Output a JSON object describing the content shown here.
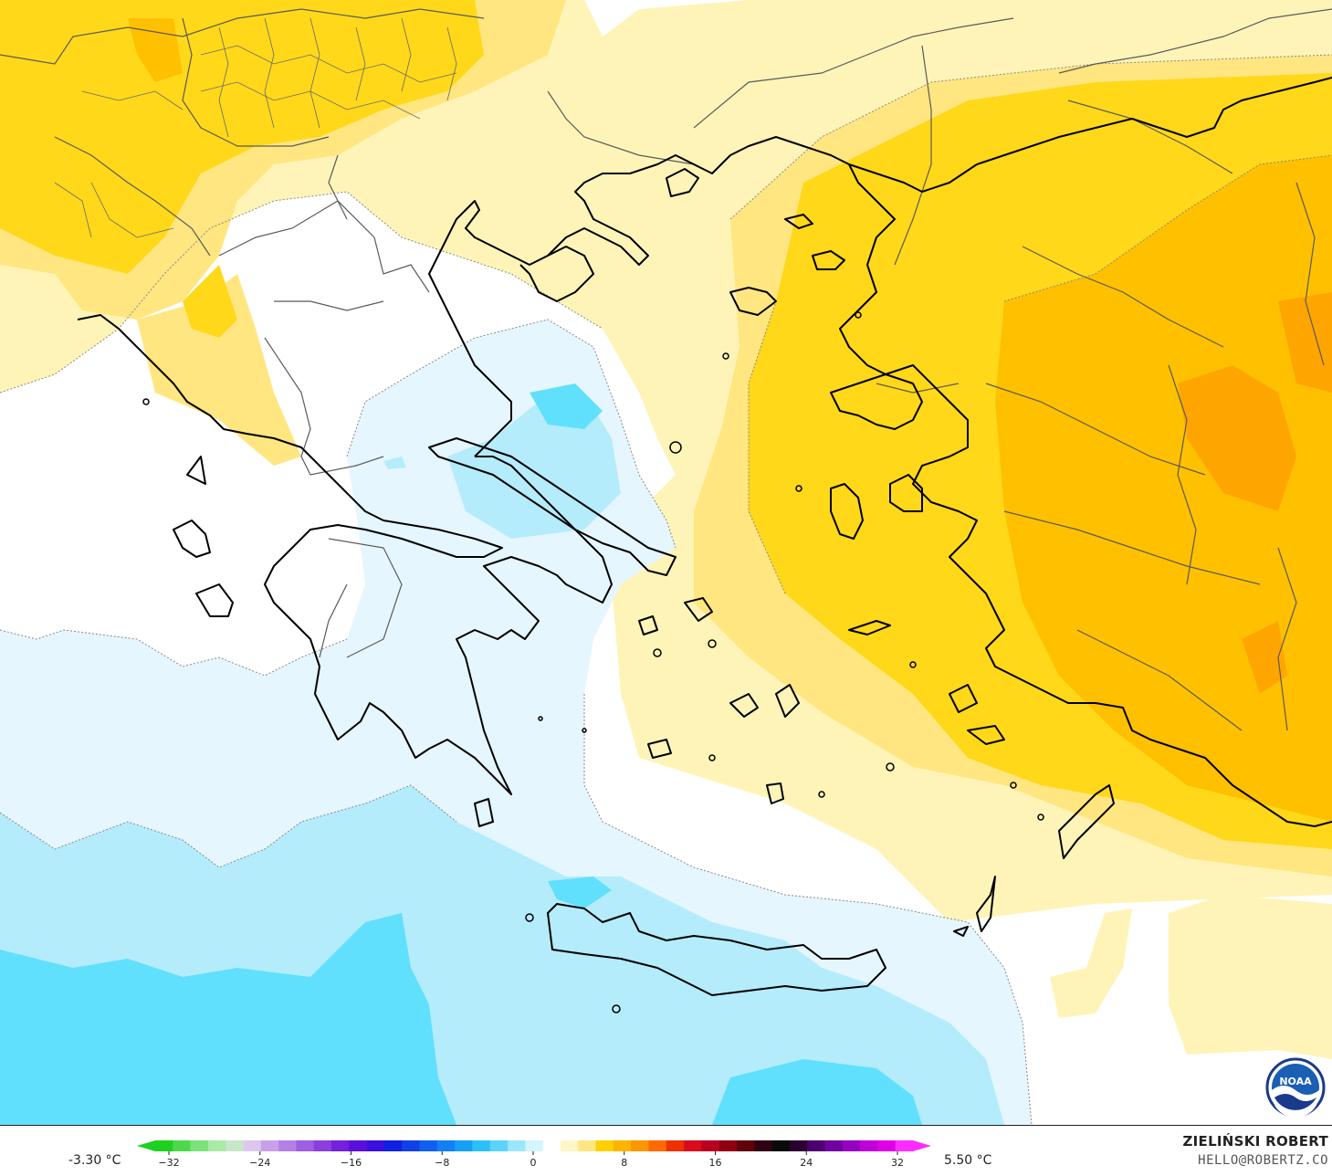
{
  "legend": {
    "min_label": "-3.30 °C",
    "max_label": "5.50 °C",
    "ticks": [
      "−32",
      "−24",
      "−16",
      "−8",
      "0",
      "8",
      "16",
      "24",
      "32"
    ],
    "colors": [
      "#1fd11f",
      "#4cda4c",
      "#7be27b",
      "#a8eaa8",
      "#c8e6c8",
      "#dcc8ee",
      "#c8a0ea",
      "#b480e6",
      "#9e5fe2",
      "#8a3ede",
      "#7520da",
      "#5a10dc",
      "#3a10e0",
      "#1020e0",
      "#1040e8",
      "#1060f0",
      "#1080f4",
      "#14a0f6",
      "#2cc0f8",
      "#5ad4fa",
      "#9ae6fc",
      "#d4f4fe",
      "#ffffff",
      "#fff6c8",
      "#ffe680",
      "#ffd000",
      "#ffb400",
      "#ff9600",
      "#ff6a00",
      "#f03000",
      "#d80c1a",
      "#b80020",
      "#900010",
      "#600008",
      "#300014",
      "#0a0a0a",
      "#2a0030",
      "#4c0070",
      "#7000a0",
      "#9600c0",
      "#c000d8",
      "#e000e8",
      "#ff2cff"
    ]
  },
  "branding": {
    "author": "ZIELIŃSKI ROBERT",
    "email": "HELLO@ROBERTZ.CO",
    "logo_text": "NOAA"
  },
  "map_colors": {
    "background_white": "#ffffff",
    "pale_yellow": "#fff4b8",
    "light_yellow": "#ffe680",
    "yellow": "#ffd81a",
    "orange_yellow": "#ffc000",
    "orange": "#ffa500",
    "pale_blue": "#e6f6fe",
    "light_blue": "#b4ecfc",
    "cyan": "#60e0fc",
    "coast": "#000000",
    "border": "#555555"
  }
}
